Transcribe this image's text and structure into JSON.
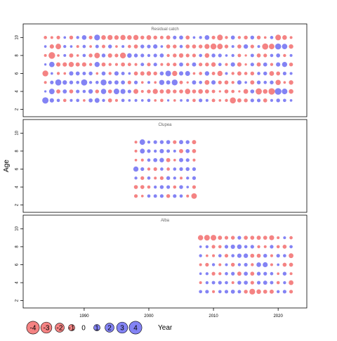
{
  "figure": {
    "ylabel": "Age",
    "xlabel": "Year"
  },
  "legend": {
    "title": "Year",
    "items": [
      {
        "label": "-4",
        "value": -4
      },
      {
        "label": "-3",
        "value": -3
      },
      {
        "label": "-2",
        "value": -2
      },
      {
        "label": "-1",
        "value": -1
      },
      {
        "label": "0",
        "value": 0
      },
      {
        "label": "1",
        "value": 1
      },
      {
        "label": "2",
        "value": 2
      },
      {
        "label": "3",
        "value": 3
      },
      {
        "label": "4",
        "value": 4
      }
    ]
  },
  "colors": {
    "positive": "#5a5af0",
    "negative": "#f05a5a"
  },
  "chart_data": [
    {
      "type": "scatter",
      "title": "Residual catch",
      "xlim": [
        1981,
        2024
      ],
      "ylim": [
        1.5,
        11.2
      ],
      "xticks": [
        1990,
        2000,
        2010,
        2020
      ],
      "yticks": [
        2,
        4,
        6,
        8,
        10
      ],
      "show_x_ticklabels": false,
      "ages": [
        3,
        4,
        5,
        6,
        7,
        8,
        9,
        10
      ],
      "years": [
        1984,
        1985,
        1986,
        1987,
        1988,
        1989,
        1990,
        1991,
        1992,
        1993,
        1994,
        1995,
        1996,
        1997,
        1998,
        1999,
        2000,
        2001,
        2002,
        2003,
        2004,
        2005,
        2006,
        2007,
        2008,
        2009,
        2010,
        2011,
        2012,
        2013,
        2014,
        2015,
        2016,
        2017,
        2018,
        2019,
        2020,
        2021,
        2022
      ],
      "residuals": [
        [
          3.0,
          1.4,
          0.8,
          -0.8,
          0.6,
          0.8,
          -0.5,
          1.2,
          1.8,
          0.7,
          -1.2,
          -0.6,
          0.8,
          0.5,
          0.6,
          0.5,
          0.8,
          -0.5,
          -0.8,
          0.4,
          -0.5,
          0.5,
          0.6,
          -0.8,
          1.0,
          0.6,
          -0.9,
          -0.5,
          -0.7,
          -2.7,
          -1.3,
          -1.1,
          1.0,
          1.0,
          -1.2,
          0.6,
          1.1,
          0.8,
          0.5
        ],
        [
          0.4,
          2.3,
          -1.3,
          1.3,
          -1.2,
          1.0,
          0.8,
          1.5,
          -1.1,
          2.1,
          -1.2,
          2.4,
          1.9,
          1.0,
          -1.8,
          -0.6,
          -1.1,
          -2.0,
          -1.3,
          -1.6,
          -1.1,
          -1.2,
          -2.2,
          -1.2,
          -1.6,
          -1.3,
          -0.9,
          -0.4,
          -1.2,
          -0.8,
          -0.4,
          -1.7,
          1.2,
          -2.9,
          -1.6,
          -3.1,
          3.3,
          2.4,
          -1.6
        ],
        [
          -0.6,
          1.0,
          2.8,
          1.5,
          1.1,
          0.8,
          2.9,
          0.7,
          0.8,
          2.6,
          1.1,
          1.3,
          1.2,
          -1.0,
          1.0,
          -0.5,
          0.6,
          -0.5,
          2.0,
          1.3,
          2.6,
          -0.9,
          -0.4,
          1.3,
          0.8,
          -1.7,
          1.4,
          -1.0,
          -1.2,
          -0.7,
          1.4,
          0.5,
          -1.3,
          1.1,
          0.8,
          1.1,
          -2.1,
          -0.5,
          -1.5
        ],
        [
          -2.6,
          0.5,
          -0.7,
          -0.5,
          1.4,
          1.2,
          0.9,
          1.1,
          -0.5,
          1.2,
          -0.7,
          1.4,
          0.9,
          0.5,
          -1.2,
          -1.3,
          -1.5,
          -1.1,
          1.2,
          2.4,
          -2.0,
          1.4,
          1.8,
          -0.5,
          -0.8,
          1.5,
          -0.9,
          -2.0,
          0.6,
          -0.7,
          -1.3,
          -0.8,
          -1.1,
          0.8,
          1.1,
          -1.7,
          -1.2,
          1.0,
          0.6
        ],
        [
          0.4,
          2.2,
          -1.4,
          -1.4,
          -2.0,
          -1.3,
          -1.4,
          -0.7,
          2.0,
          -1.2,
          -0.7,
          -0.6,
          -1.2,
          -0.9,
          -0.6,
          0.9,
          -1.0,
          1.0,
          -0.6,
          -0.9,
          -1.0,
          1.2,
          -0.8,
          1.3,
          -1.0,
          -1.1,
          -1.5,
          0.8,
          -0.6,
          1.4,
          -1.4,
          -0.4,
          1.0,
          -1.3,
          1.2,
          -0.7,
          1.4,
          2.0,
          -1.1
        ],
        [
          -0.6,
          -3.3,
          -0.5,
          0.6,
          -1.3,
          -0.5,
          0.8,
          -1.1,
          -2.3,
          1.1,
          -1.4,
          -1.0,
          -2.6,
          1.6,
          1.1,
          1.0,
          0.7,
          1.0,
          1.2,
          -0.7,
          -1.1,
          -1.5,
          -1.0,
          -1.0,
          0.8,
          -1.6,
          1.1,
          1.0,
          0.5,
          0.7,
          -0.9,
          -0.4,
          0.9,
          -1.2,
          -1.0,
          0.8,
          1.2,
          -0.7,
          0.6
        ],
        [
          0.5,
          -1.4,
          -2.3,
          0.7,
          0.5,
          -0.6,
          0.8,
          -0.5,
          0.9,
          -0.9,
          1.1,
          -0.5,
          0.6,
          -0.8,
          -1.2,
          1.1,
          1.0,
          1.4,
          0.5,
          -1.2,
          -1.1,
          0.8,
          -1.2,
          -1.2,
          -1.1,
          -1.9,
          -2.6,
          -2.3,
          -1.1,
          0.6,
          -1.2,
          1.5,
          -1.0,
          0.6,
          -2.8,
          -2.3,
          2.7,
          2.2,
          -1.5
        ],
        [
          -0.8,
          -0.6,
          -1.0,
          0.5,
          -1.1,
          0.7,
          1.6,
          -1.0,
          2.5,
          -1.6,
          -1.9,
          -1.5,
          -2.0,
          -1.6,
          -2.0,
          -1.1,
          -1.7,
          -1.1,
          -0.9,
          -1.3,
          1.0,
          1.2,
          -1.2,
          0.5,
          0.7,
          1.7,
          -1.0,
          -2.4,
          -0.7,
          1.2,
          -0.7,
          -1.1,
          1.1,
          -1.1,
          -0.5,
          0.8,
          -2.4,
          -1.6,
          -0.6
        ]
      ]
    },
    {
      "type": "scatter",
      "title": "Clupea",
      "xlim": [
        1981,
        2024
      ],
      "ylim": [
        1.5,
        11.2
      ],
      "xticks": [
        1990,
        2000,
        2010,
        2020
      ],
      "yticks": [
        2,
        4,
        6,
        8,
        10
      ],
      "show_x_ticklabels": false,
      "ages": [
        3,
        4,
        5,
        6,
        7,
        8,
        9
      ],
      "years": [
        1998,
        1999,
        2000,
        2001,
        2002,
        2003,
        2004,
        2005,
        2006,
        2007
      ],
      "residuals": [
        [
          -1.0,
          -0.5,
          0.8,
          0.9,
          1.0,
          -1.1,
          1.0,
          0.8,
          -0.6,
          -2.3
        ],
        [
          -1.2,
          -1.2,
          -0.8,
          0.7,
          1.1,
          1.0,
          -0.8,
          1.1,
          0.5,
          -1.0
        ],
        [
          0.7,
          -1.0,
          0.8,
          -0.6,
          -1.0,
          1.1,
          0.7,
          -0.6,
          0.7,
          1.0
        ],
        [
          2.0,
          1.0,
          -0.7,
          -1.0,
          0.8,
          -0.8,
          0.8,
          1.0,
          1.1,
          1.0
        ],
        [
          -0.5,
          -0.6,
          0.8,
          1.2,
          1.5,
          -1.3,
          -0.5,
          1.3,
          1.0,
          -0.6
        ],
        [
          -0.6,
          1.8,
          1.0,
          0.7,
          1.4,
          0.9,
          0.6,
          -1.3,
          1.2,
          -1.2
        ],
        [
          -0.6,
          2.3,
          0.7,
          1.0,
          1.1,
          1.2,
          -1.0,
          1.3,
          1.1,
          -1.3
        ]
      ]
    },
    {
      "type": "scatter",
      "title": "Alba",
      "xlim": [
        1981,
        2024
      ],
      "ylim": [
        1.5,
        11.2
      ],
      "xticks": [
        1990,
        2000,
        2010,
        2020
      ],
      "yticks": [
        2,
        4,
        6,
        8,
        10
      ],
      "show_x_ticklabels": true,
      "ages": [
        3,
        4,
        5,
        6,
        7,
        8,
        9
      ],
      "years": [
        2008,
        2009,
        2010,
        2011,
        2012,
        2013,
        2014,
        2015,
        2016,
        2017,
        2018,
        2019,
        2020,
        2021,
        2022
      ],
      "residuals": [
        [
          0.8,
          1.0,
          -0.6,
          0.8,
          1.0,
          1.2,
          0.9,
          -1.1,
          -2.5,
          -1.6,
          -1.2,
          -1.3,
          0.7,
          1.0,
          -1.0
        ],
        [
          -0.6,
          0.7,
          0.9,
          1.0,
          0.8,
          -0.6,
          1.1,
          1.2,
          -1.0,
          1.0,
          1.3,
          0.9,
          -0.8,
          0.7,
          -1.7
        ],
        [
          0.5,
          0.7,
          -1.0,
          -0.7,
          0.8,
          1.0,
          -1.3,
          1.2,
          -1.2,
          1.1,
          1.0,
          0.8,
          -0.5,
          1.1,
          -0.6
        ],
        [
          -0.6,
          -1.0,
          0.7,
          -0.6,
          0.6,
          -1.1,
          0.7,
          1.0,
          -0.7,
          1.6,
          1.9,
          -0.6,
          0.5,
          -1.2,
          -1.2
        ],
        [
          0.7,
          -0.5,
          -0.6,
          0.8,
          -1.0,
          0.8,
          1.4,
          1.5,
          -1.2,
          -1.2,
          1.1,
          -0.6,
          1.0,
          0.8,
          -1.7
        ],
        [
          0.5,
          0.7,
          -1.0,
          -0.8,
          1.0,
          1.4,
          1.6,
          0.8,
          1.0,
          -0.7,
          -0.6,
          1.0,
          -0.8,
          -1.2,
          0.8
        ],
        [
          -2.1,
          -2.4,
          -2.4,
          -1.3,
          -1.0,
          -1.1,
          1.0,
          -1.2,
          -1.2,
          -1.3,
          -1.2,
          -1.8,
          -0.6,
          0.6,
          -0.8
        ]
      ]
    }
  ]
}
